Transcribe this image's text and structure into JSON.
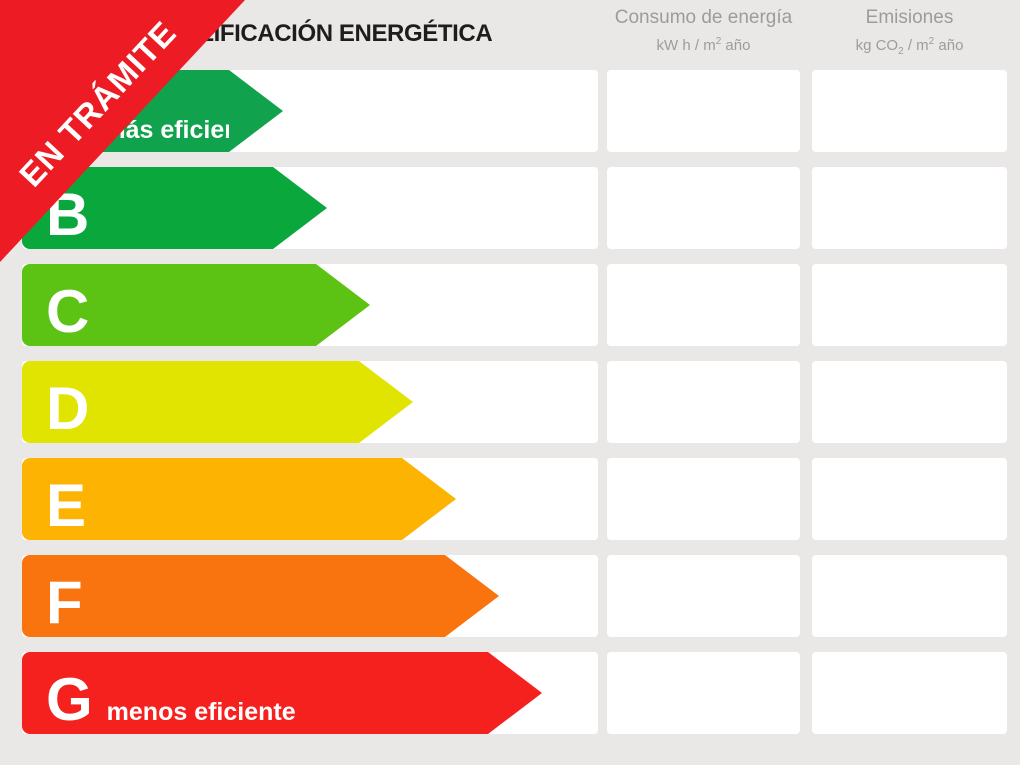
{
  "title": "ESCALA DE CALIFICACIÓN ENERGÉTICA",
  "ribbon": {
    "label": "EN TRÁMITE",
    "color": "#ed1c24"
  },
  "columns": {
    "consumption": {
      "title": "Consumo de energía",
      "unit_parts": [
        "kW h / m",
        "2",
        " año"
      ]
    },
    "emissions": {
      "title": "Emisiones",
      "unit_parts": [
        "kg CO",
        "2",
        " / m",
        "2",
        " año"
      ]
    }
  },
  "scale": {
    "ratings": [
      {
        "letter": "A",
        "color": "#10a24c",
        "arrow_width": 261,
        "note": "más eficiente",
        "consumption_value": "",
        "emissions_value": ""
      },
      {
        "letter": "B",
        "color": "#0aa73d",
        "arrow_width": 305,
        "note": "",
        "consumption_value": "",
        "emissions_value": ""
      },
      {
        "letter": "C",
        "color": "#5cc213",
        "arrow_width": 348,
        "note": "",
        "consumption_value": "",
        "emissions_value": ""
      },
      {
        "letter": "D",
        "color": "#e1e400",
        "arrow_width": 391,
        "note": "",
        "consumption_value": "",
        "emissions_value": ""
      },
      {
        "letter": "E",
        "color": "#fdb301",
        "arrow_width": 434,
        "note": "",
        "consumption_value": "",
        "emissions_value": ""
      },
      {
        "letter": "F",
        "color": "#f9740f",
        "arrow_width": 477,
        "note": "",
        "consumption_value": "",
        "emissions_value": ""
      },
      {
        "letter": "G",
        "color": "#f5211e",
        "arrow_width": 520,
        "note": "menos eficiente",
        "consumption_value": "",
        "emissions_value": ""
      }
    ]
  },
  "chart_data": {
    "type": "bar",
    "orientation": "horizontal",
    "title": "ESCALA DE CALIFICACIÓN ENERGÉTICA",
    "categories": [
      "A",
      "B",
      "C",
      "D",
      "E",
      "F",
      "G"
    ],
    "values": [
      261,
      305,
      348,
      391,
      434,
      477,
      520
    ],
    "value_meaning": "arrow length in pixels (rank indicator only, no numeric axis shown)",
    "colors": [
      "#10a24c",
      "#0aa73d",
      "#5cc213",
      "#e1e400",
      "#fdb301",
      "#f9740f",
      "#f5211e"
    ],
    "annotations": [
      "más eficiente (on A)",
      "menos eficiente (on G)",
      "EN TRÁMITE (diagonal overlay ribbon)"
    ],
    "extra_columns": [
      {
        "header": "Consumo de energía",
        "unit": "kW h / m² año",
        "values": [
          "",
          "",
          "",
          "",
          "",
          "",
          ""
        ]
      },
      {
        "header": "Emisiones",
        "unit": "kg CO₂ / m² año",
        "values": [
          "",
          "",
          "",
          "",
          "",
          "",
          ""
        ]
      }
    ],
    "legend": false,
    "grid": false
  }
}
